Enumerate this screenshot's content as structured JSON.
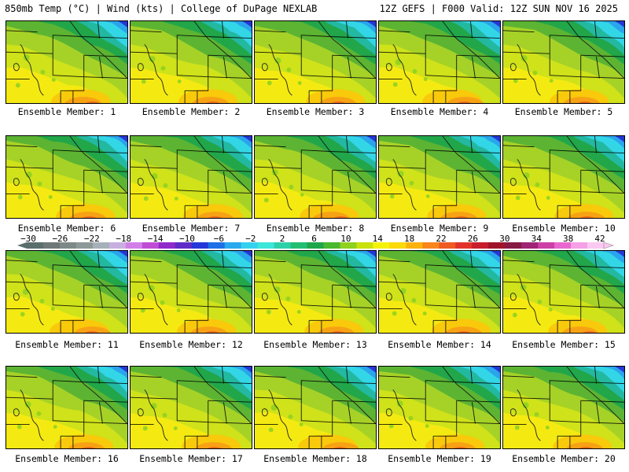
{
  "header": {
    "left": "850mb Temp (°C) | Wind (kts) | College of DuPage NEXLAB",
    "right": "12Z GEFS | F000 Valid: 12Z SUN NOV 16 2025"
  },
  "label_prefix": "Ensemble Member:",
  "members": [
    1,
    2,
    3,
    4,
    5,
    6,
    7,
    8,
    9,
    10,
    11,
    12,
    13,
    14,
    15,
    16,
    17,
    18,
    19,
    20
  ],
  "colorbar": {
    "ticks": [
      -30,
      -26,
      -22,
      -18,
      -14,
      -10,
      -6,
      -2,
      2,
      6,
      10,
      14,
      18,
      22,
      26,
      30,
      34,
      38,
      42
    ],
    "colors": [
      "#5a6e6e",
      "#6e7878",
      "#7e8888",
      "#8e9898",
      "#a6b0b8",
      "#c8aee0",
      "#d27ee8",
      "#c04cd6",
      "#8f2acb",
      "#5e2bc7",
      "#2535d8",
      "#1f6fe6",
      "#2aa9ee",
      "#35d0ee",
      "#3ce6d8",
      "#2ed0a8",
      "#22bf73",
      "#1fa64a",
      "#49b92f",
      "#8ed11f",
      "#c9e10d",
      "#f4f20a",
      "#fbd90a",
      "#fbb20c",
      "#f8861a",
      "#ef5b21",
      "#e2332a",
      "#c81d2c",
      "#a0142b",
      "#861a42",
      "#a02474",
      "#cc3fa5",
      "#ea66cf",
      "#f6a0e6",
      "#fbc8f2"
    ]
  }
}
